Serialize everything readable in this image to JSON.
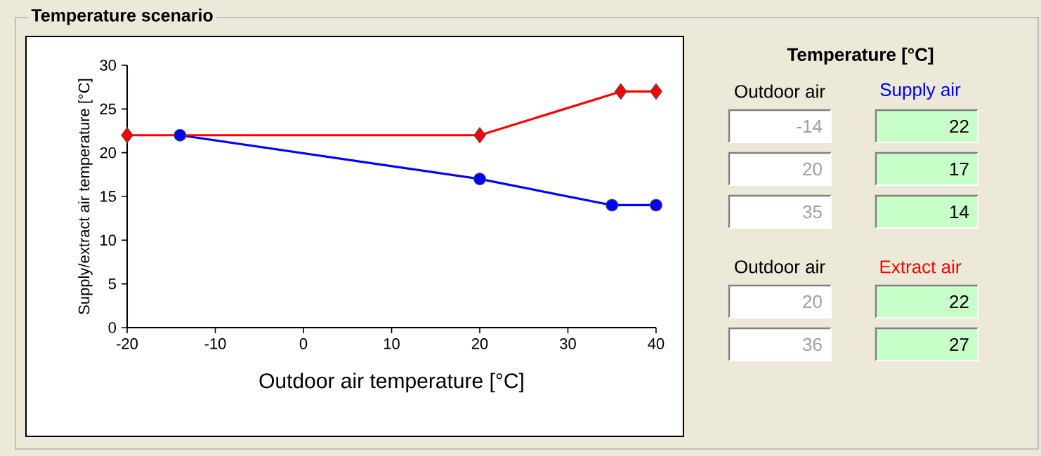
{
  "chart_data": [
    {
      "type": "line",
      "title": "Temperature scenario",
      "xlabel": "Outdoor air temperature [°C]",
      "ylabel": "Supply/extract air temperature [°C]",
      "legend_title": "Temperature [°C]",
      "legend": "right",
      "grid": false,
      "xlim": [
        -20,
        40
      ],
      "ylim": [
        0,
        30
      ],
      "xticks": [
        -20,
        -10,
        0,
        10,
        20,
        30,
        40
      ],
      "yticks": [
        0,
        5,
        10,
        15,
        20,
        25,
        30
      ],
      "series": [
        {
          "name": "Supply air",
          "color": "#0000ff",
          "marker": "circle",
          "x": [
            -14,
            20,
            35,
            40
          ],
          "values": [
            22,
            17,
            14,
            14
          ]
        },
        {
          "name": "Extract air",
          "color": "#ff0000",
          "marker": "diamond",
          "x": [
            -20,
            20,
            36,
            40
          ],
          "values": [
            22,
            22,
            27,
            27
          ]
        }
      ]
    },
    {
      "type": "other",
      "annotations": [
        "Outdoor air",
        "-14",
        "22",
        "20",
        "17",
        "35",
        "14",
        "Outdoor air",
        "20",
        "22",
        "36",
        "27"
      ]
    }
  ]
}
